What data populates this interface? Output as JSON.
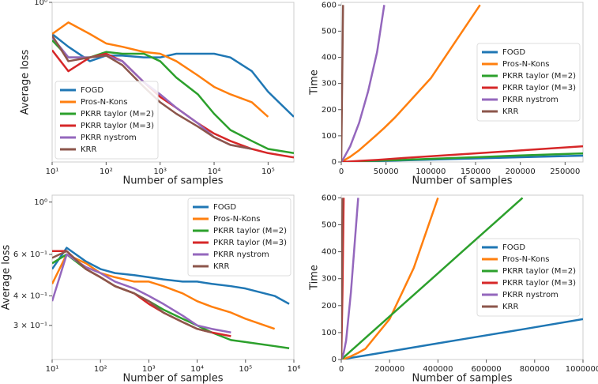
{
  "chart_data": [
    {
      "type": "line",
      "xlabel": "Number of samples",
      "ylabel": "Average loss",
      "xscale": "log",
      "yscale": "log",
      "legend": "lower left",
      "xlim": [
        10,
        300000
      ],
      "ylim": [
        0.25,
        1.0
      ],
      "xticks": [
        {
          "value": 10,
          "label": "10¹"
        },
        {
          "value": 100,
          "label": "10²"
        },
        {
          "value": 1000,
          "label": "10³"
        },
        {
          "value": 10000,
          "label": "10⁴"
        },
        {
          "value": 100000,
          "label": "10⁵"
        }
      ],
      "yticks": [
        {
          "value": 1,
          "label": "10⁰"
        }
      ],
      "x": [
        10,
        20,
        50,
        100,
        200,
        500,
        1000,
        2000,
        5000,
        10000,
        20000,
        50000,
        100000,
        300000
      ],
      "series": [
        {
          "name": "FOGD",
          "color": "#1f77b4",
          "values": [
            0.76,
            0.68,
            0.6,
            0.63,
            0.63,
            0.62,
            0.62,
            0.64,
            0.64,
            0.64,
            0.62,
            0.55,
            0.46,
            0.37
          ]
        },
        {
          "name": "Pros-N-Kons",
          "color": "#ff7f0e",
          "values": [
            0.76,
            0.84,
            0.76,
            0.7,
            0.68,
            0.65,
            0.64,
            0.6,
            0.53,
            0.48,
            0.45,
            0.42,
            0.37,
            null
          ]
        },
        {
          "name": "PKRR taylor (M=2)",
          "color": "#2ca02c",
          "values": [
            0.72,
            0.62,
            0.62,
            0.65,
            0.64,
            0.64,
            0.6,
            0.52,
            0.45,
            0.38,
            0.33,
            0.3,
            0.28,
            0.27
          ]
        },
        {
          "name": "PKRR taylor (M=3)",
          "color": "#d62728",
          "values": [
            0.66,
            0.55,
            0.62,
            0.64,
            0.6,
            0.5,
            0.44,
            0.4,
            0.35,
            0.32,
            0.3,
            0.28,
            0.27,
            0.26
          ]
        },
        {
          "name": "PKRR nystrom",
          "color": "#9467bd",
          "values": [
            0.74,
            0.62,
            0.62,
            0.63,
            0.6,
            0.5,
            0.45,
            0.4,
            0.35,
            0.31,
            0.29,
            0.28,
            null,
            null
          ]
        },
        {
          "name": "KRR",
          "color": "#8c564b",
          "values": [
            0.75,
            0.6,
            0.62,
            0.63,
            0.58,
            0.48,
            0.42,
            0.38,
            0.34,
            0.31,
            0.29,
            0.28,
            null,
            null
          ]
        }
      ]
    },
    {
      "type": "line",
      "xlabel": "Number of samples",
      "ylabel": "Time",
      "xscale": "linear",
      "yscale": "linear",
      "legend": "center right",
      "xlim": [
        0,
        270000
      ],
      "ylim": [
        0,
        610
      ],
      "xticks": [
        0,
        50000,
        100000,
        150000,
        200000,
        250000
      ],
      "yticks": [
        0,
        100,
        200,
        300,
        400,
        500,
        600
      ],
      "x": [
        0,
        1000,
        2000,
        10000,
        20000,
        30000,
        40000,
        48000,
        60000,
        100000,
        155000,
        200000,
        270000
      ],
      "series": [
        {
          "name": "FOGD",
          "color": "#1f77b4",
          "values": [
            0,
            0.1,
            0.2,
            0.9,
            1.8,
            2.7,
            3.6,
            4.3,
            5.4,
            9,
            14,
            18,
            24
          ]
        },
        {
          "name": "Pros-N-Kons",
          "color": "#ff7f0e",
          "values": [
            0,
            2,
            4,
            20,
            45,
            75,
            105,
            130,
            170,
            320,
            600,
            null,
            null
          ]
        },
        {
          "name": "PKRR taylor (M=2)",
          "color": "#2ca02c",
          "values": [
            0,
            0.1,
            0.2,
            1,
            2.5,
            4,
            5,
            6,
            7,
            12,
            19,
            25,
            33
          ]
        },
        {
          "name": "PKRR taylor (M=3)",
          "color": "#d62728",
          "values": [
            0,
            0.2,
            0.4,
            2,
            4,
            6,
            8,
            10,
            13,
            22,
            34,
            44,
            60
          ]
        },
        {
          "name": "PKRR nystrom",
          "color": "#9467bd",
          "values": [
            0,
            5,
            10,
            60,
            150,
            270,
            420,
            600,
            null,
            null,
            null,
            null,
            null
          ]
        },
        {
          "name": "KRR",
          "color": "#8c564b",
          "values": [
            0,
            300,
            600,
            null,
            null,
            null,
            null,
            null,
            null,
            null,
            null,
            null,
            null
          ]
        }
      ]
    },
    {
      "type": "line",
      "xlabel": "Number of samples",
      "ylabel": "Average loss",
      "xscale": "log",
      "yscale": "log",
      "legend": "upper right",
      "xlim": [
        10,
        1000000
      ],
      "ylim": [
        0.215,
        1.07
      ],
      "xticks": [
        {
          "value": 10,
          "label": "10¹"
        },
        {
          "value": 100,
          "label": "10²"
        },
        {
          "value": 1000,
          "label": "10³"
        },
        {
          "value": 10000,
          "label": "10⁴"
        },
        {
          "value": 100000,
          "label": "10⁵"
        },
        {
          "value": 1000000,
          "label": "10⁶"
        }
      ],
      "yticks": [
        {
          "value": 1,
          "label": "10⁰"
        },
        {
          "value": 0.6,
          "label": "6 × 10⁻¹"
        },
        {
          "value": 0.4,
          "label": "4 × 10⁻¹"
        },
        {
          "value": 0.3,
          "label": "3 × 10⁻¹"
        }
      ],
      "x": [
        10,
        20,
        50,
        100,
        200,
        500,
        1000,
        2000,
        5000,
        10000,
        20000,
        50000,
        100000,
        400000,
        800000
      ],
      "series": [
        {
          "name": "FOGD",
          "color": "#1f77b4",
          "values": [
            0.52,
            0.64,
            0.56,
            0.52,
            0.5,
            0.49,
            0.48,
            0.47,
            0.46,
            0.46,
            0.45,
            0.44,
            0.43,
            0.4,
            0.37
          ]
        },
        {
          "name": "Pros-N-Kons",
          "color": "#ff7f0e",
          "values": [
            0.45,
            0.6,
            0.55,
            0.5,
            0.48,
            0.46,
            0.46,
            0.44,
            0.41,
            0.38,
            0.36,
            0.34,
            0.32,
            0.29,
            null
          ]
        },
        {
          "name": "PKRR taylor (M=2)",
          "color": "#2ca02c",
          "values": [
            0.55,
            0.6,
            0.52,
            0.48,
            0.44,
            0.41,
            0.38,
            0.35,
            0.32,
            0.3,
            0.28,
            0.26,
            0.255,
            0.245,
            0.24
          ]
        },
        {
          "name": "PKRR taylor (M=3)",
          "color": "#d62728",
          "values": [
            0.62,
            0.62,
            0.52,
            0.48,
            0.44,
            0.41,
            0.37,
            0.34,
            0.31,
            0.29,
            0.28,
            0.27,
            null,
            null,
            null
          ]
        },
        {
          "name": "PKRR nystrom",
          "color": "#9467bd",
          "values": [
            0.38,
            0.6,
            0.53,
            0.5,
            0.46,
            0.43,
            0.4,
            0.37,
            0.33,
            0.3,
            0.29,
            0.28,
            null,
            null,
            null
          ]
        },
        {
          "name": "KRR",
          "color": "#8c564b",
          "values": [
            0.58,
            0.62,
            0.52,
            0.48,
            0.44,
            0.41,
            0.38,
            0.34,
            0.31,
            0.29,
            0.28,
            null,
            null,
            null,
            null
          ]
        }
      ]
    },
    {
      "type": "line",
      "xlabel": "Number of samples",
      "ylabel": "Time",
      "xscale": "linear",
      "yscale": "linear",
      "legend": "center right",
      "xlim": [
        0,
        1000000
      ],
      "ylim": [
        0,
        610
      ],
      "xticks": [
        0,
        200000,
        400000,
        600000,
        800000,
        1000000
      ],
      "yticks": [
        0,
        100,
        200,
        300,
        400,
        500,
        600
      ],
      "x": [
        0,
        5000,
        10000,
        20000,
        40000,
        70000,
        100000,
        200000,
        300000,
        400000,
        500000,
        750000,
        1000000
      ],
      "series": [
        {
          "name": "FOGD",
          "color": "#1f77b4",
          "values": [
            0,
            0.75,
            1.5,
            3,
            6,
            10.5,
            15,
            30,
            45,
            60,
            75,
            112,
            150
          ]
        },
        {
          "name": "Pros-N-Kons",
          "color": "#ff7f0e",
          "values": [
            0,
            1,
            2,
            5,
            12,
            25,
            40,
            150,
            340,
            600,
            null,
            null,
            null
          ]
        },
        {
          "name": "PKRR taylor (M=2)",
          "color": "#2ca02c",
          "values": [
            0,
            4,
            8,
            16,
            32,
            56,
            80,
            160,
            240,
            320,
            400,
            600,
            null
          ]
        },
        {
          "name": "PKRR taylor (M=3)",
          "color": "#d62728",
          "values": [
            0,
            250,
            600,
            null,
            null,
            null,
            null,
            null,
            null,
            null,
            null,
            null,
            null
          ]
        },
        {
          "name": "PKRR nystrom",
          "color": "#9467bd",
          "values": [
            0,
            10,
            25,
            70,
            250,
            600,
            null,
            null,
            null,
            null,
            null,
            null,
            null
          ]
        },
        {
          "name": "KRR",
          "color": "#8c564b",
          "values": [
            0,
            600,
            null,
            null,
            null,
            null,
            null,
            null,
            null,
            null,
            null,
            null,
            null
          ]
        }
      ]
    }
  ]
}
